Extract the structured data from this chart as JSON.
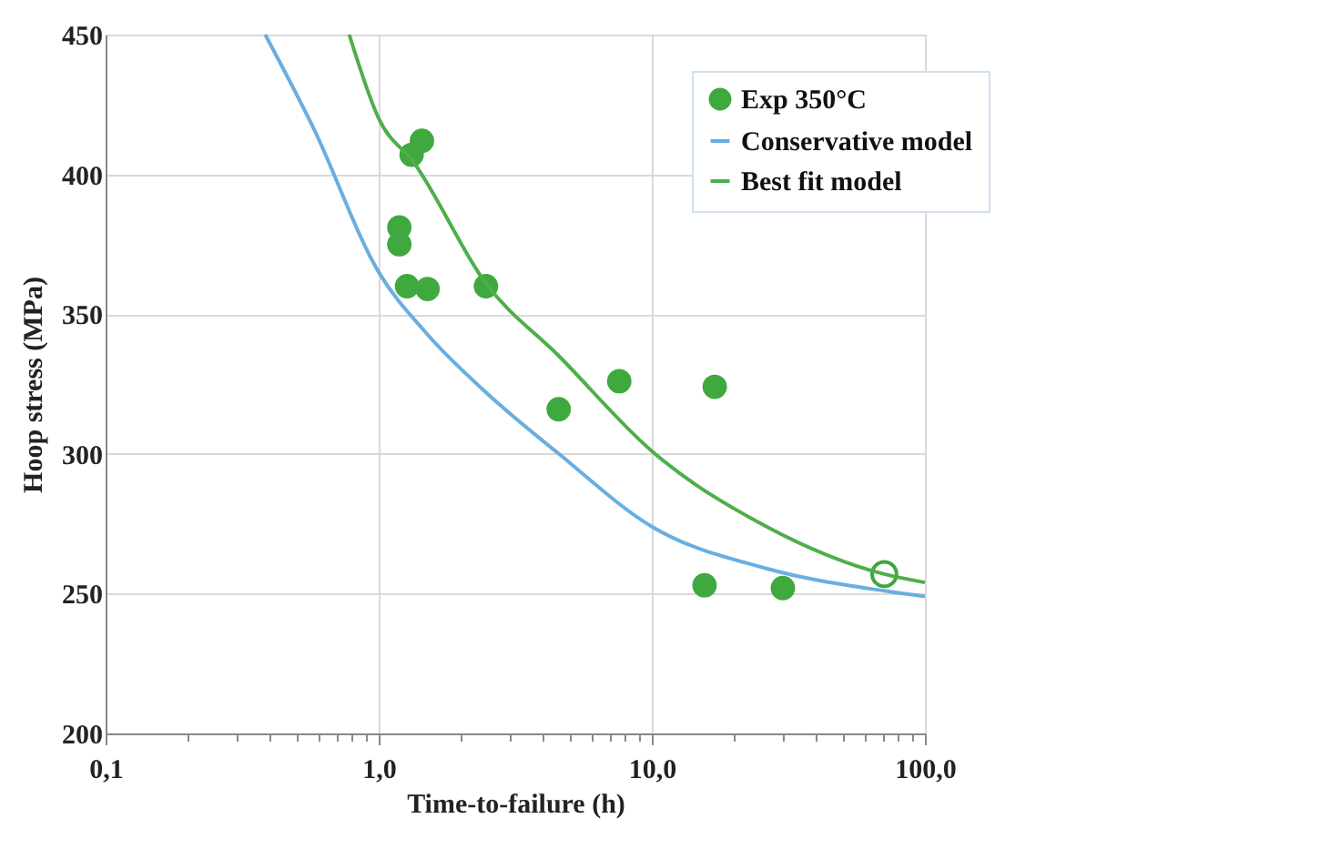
{
  "chart_data": {
    "type": "scatter",
    "xlabel": "Time-to-failure (h)",
    "ylabel": "Hoop stress (MPa)",
    "log": "x",
    "xlim": [
      0.1,
      100
    ],
    "ylim": [
      200,
      450
    ],
    "xticks": [
      {
        "value": 0.1,
        "label": "0,1"
      },
      {
        "value": 0.2,
        "label": null
      },
      {
        "value": 0.3,
        "label": null
      },
      {
        "value": 0.4,
        "label": null
      },
      {
        "value": 0.5,
        "label": null
      },
      {
        "value": 0.6,
        "label": null
      },
      {
        "value": 0.7,
        "label": null
      },
      {
        "value": 0.8,
        "label": null
      },
      {
        "value": 0.9,
        "label": null
      },
      {
        "value": 1,
        "label": "1,0"
      },
      {
        "value": 2,
        "label": null
      },
      {
        "value": 3,
        "label": null
      },
      {
        "value": 4,
        "label": null
      },
      {
        "value": 5,
        "label": null
      },
      {
        "value": 6,
        "label": null
      },
      {
        "value": 7,
        "label": null
      },
      {
        "value": 8,
        "label": null
      },
      {
        "value": 9,
        "label": null
      },
      {
        "value": 10,
        "label": "10,0"
      },
      {
        "value": 20,
        "label": null
      },
      {
        "value": 30,
        "label": null
      },
      {
        "value": 40,
        "label": null
      },
      {
        "value": 50,
        "label": null
      },
      {
        "value": 60,
        "label": null
      },
      {
        "value": 70,
        "label": null
      },
      {
        "value": 80,
        "label": null
      },
      {
        "value": 90,
        "label": null
      },
      {
        "value": 100,
        "label": "100,0"
      }
    ],
    "yticks": [
      200,
      250,
      300,
      350,
      400,
      450
    ],
    "grid": true,
    "legend": "top right",
    "marker": "circle",
    "series": [
      {
        "name": "Exp 350°C",
        "color": "#3fa83f",
        "x": [
          1.44,
          1.32,
          1.19,
          1.19,
          1.27,
          1.51,
          2.47,
          4.56,
          7.6,
          17,
          15.6,
          30.2
        ],
        "values": [
          412,
          407,
          381,
          375,
          360,
          359,
          360,
          316,
          326,
          324,
          253,
          252
        ]
      },
      {
        "marker": "circle",
        "color": "#3fa83f",
        "x": [
          71
        ],
        "values": [
          257
        ]
      },
      {
        "name": "Conservative model",
        "type": "line",
        "color": "#6aaee0",
        "marker": "none",
        "x": [
          0.384,
          0.574,
          1,
          1.5,
          2.47,
          4.57,
          10,
          26.3,
          71,
          100
        ],
        "values": [
          450,
          417,
          365,
          343,
          322,
          300,
          274,
          259,
          251,
          249
        ]
      },
      {
        "name": "Best fit model",
        "type": "line",
        "color": "#4daf4a",
        "marker": "none",
        "x": [
          0.78,
          1,
          1.35,
          2.47,
          4.57,
          10,
          26.3,
          71,
          100
        ],
        "values": [
          450,
          420,
          404,
          361,
          335,
          301,
          274,
          257,
          254
        ]
      }
    ]
  }
}
